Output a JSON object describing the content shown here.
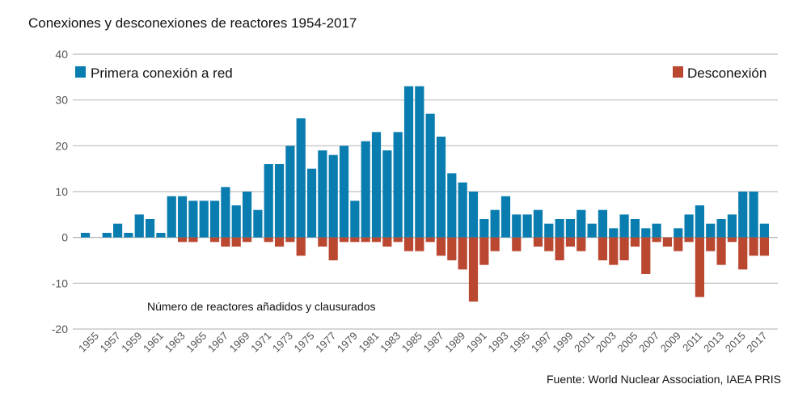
{
  "chart_data": {
    "type": "bar",
    "title": "Conexiones y desconexiones de reactores 1954-2017",
    "annotation": "Número de reactores añadidos y clausurados",
    "source": "Fuente: World Nuclear Association, IAEA PRIS",
    "xlabel": "",
    "ylabel": "",
    "ylim": [
      -20,
      40
    ],
    "yticks": [
      40,
      30,
      20,
      10,
      0,
      -10,
      -20
    ],
    "grid": true,
    "legend_placement": "top",
    "categories": [
      1954,
      1955,
      1956,
      1957,
      1958,
      1959,
      1960,
      1961,
      1962,
      1963,
      1964,
      1965,
      1966,
      1967,
      1968,
      1969,
      1970,
      1971,
      1972,
      1973,
      1974,
      1975,
      1976,
      1977,
      1978,
      1979,
      1980,
      1981,
      1982,
      1983,
      1984,
      1985,
      1986,
      1987,
      1988,
      1989,
      1990,
      1991,
      1992,
      1993,
      1994,
      1995,
      1996,
      1997,
      1998,
      1999,
      2000,
      2001,
      2002,
      2003,
      2004,
      2005,
      2006,
      2007,
      2008,
      2009,
      2010,
      2011,
      2012,
      2013,
      2014,
      2015,
      2016,
      2017
    ],
    "xtick_labels": [
      "1955",
      "1957",
      "1959",
      "1961",
      "1963",
      "1965",
      "1967",
      "1969",
      "1971",
      "1973",
      "1975",
      "1977",
      "1979",
      "1981",
      "1983",
      "1985",
      "1987",
      "1989",
      "1991",
      "1993",
      "1995",
      "1997",
      "1999",
      "2001",
      "2003",
      "2005",
      "2007",
      "2009",
      "2011",
      "2013",
      "2015",
      "2017"
    ],
    "series": [
      {
        "name": "Primera conexión a red",
        "color": "#0a7db0",
        "values": [
          1,
          0,
          1,
          3,
          1,
          5,
          4,
          1,
          9,
          9,
          8,
          8,
          8,
          11,
          7,
          10,
          6,
          16,
          16,
          20,
          26,
          15,
          19,
          18,
          20,
          8,
          21,
          23,
          19,
          23,
          33,
          33,
          27,
          22,
          14,
          12,
          10,
          4,
          6,
          9,
          5,
          5,
          6,
          3,
          4,
          4,
          6,
          3,
          6,
          2,
          5,
          4,
          2,
          3,
          0,
          2,
          5,
          7,
          3,
          4,
          5,
          10,
          10,
          3
        ]
      },
      {
        "name": "Desconexión",
        "color": "#ba4830",
        "values": [
          0,
          0,
          0,
          0,
          0,
          0,
          0,
          0,
          0,
          -1,
          -1,
          0,
          -1,
          -2,
          -2,
          -1,
          0,
          -1,
          -2,
          -1,
          -4,
          0,
          -2,
          -5,
          -1,
          -1,
          -1,
          -1,
          -2,
          -1,
          -3,
          -3,
          -1,
          -4,
          -5,
          -7,
          -14,
          -6,
          -3,
          0,
          -3,
          0,
          -2,
          -3,
          -5,
          -2,
          -3,
          0,
          -5,
          -6,
          -5,
          -2,
          -8,
          -1,
          -2,
          -3,
          -1,
          -13,
          -3,
          -6,
          -1,
          -7,
          -4,
          -4
        ]
      }
    ]
  }
}
